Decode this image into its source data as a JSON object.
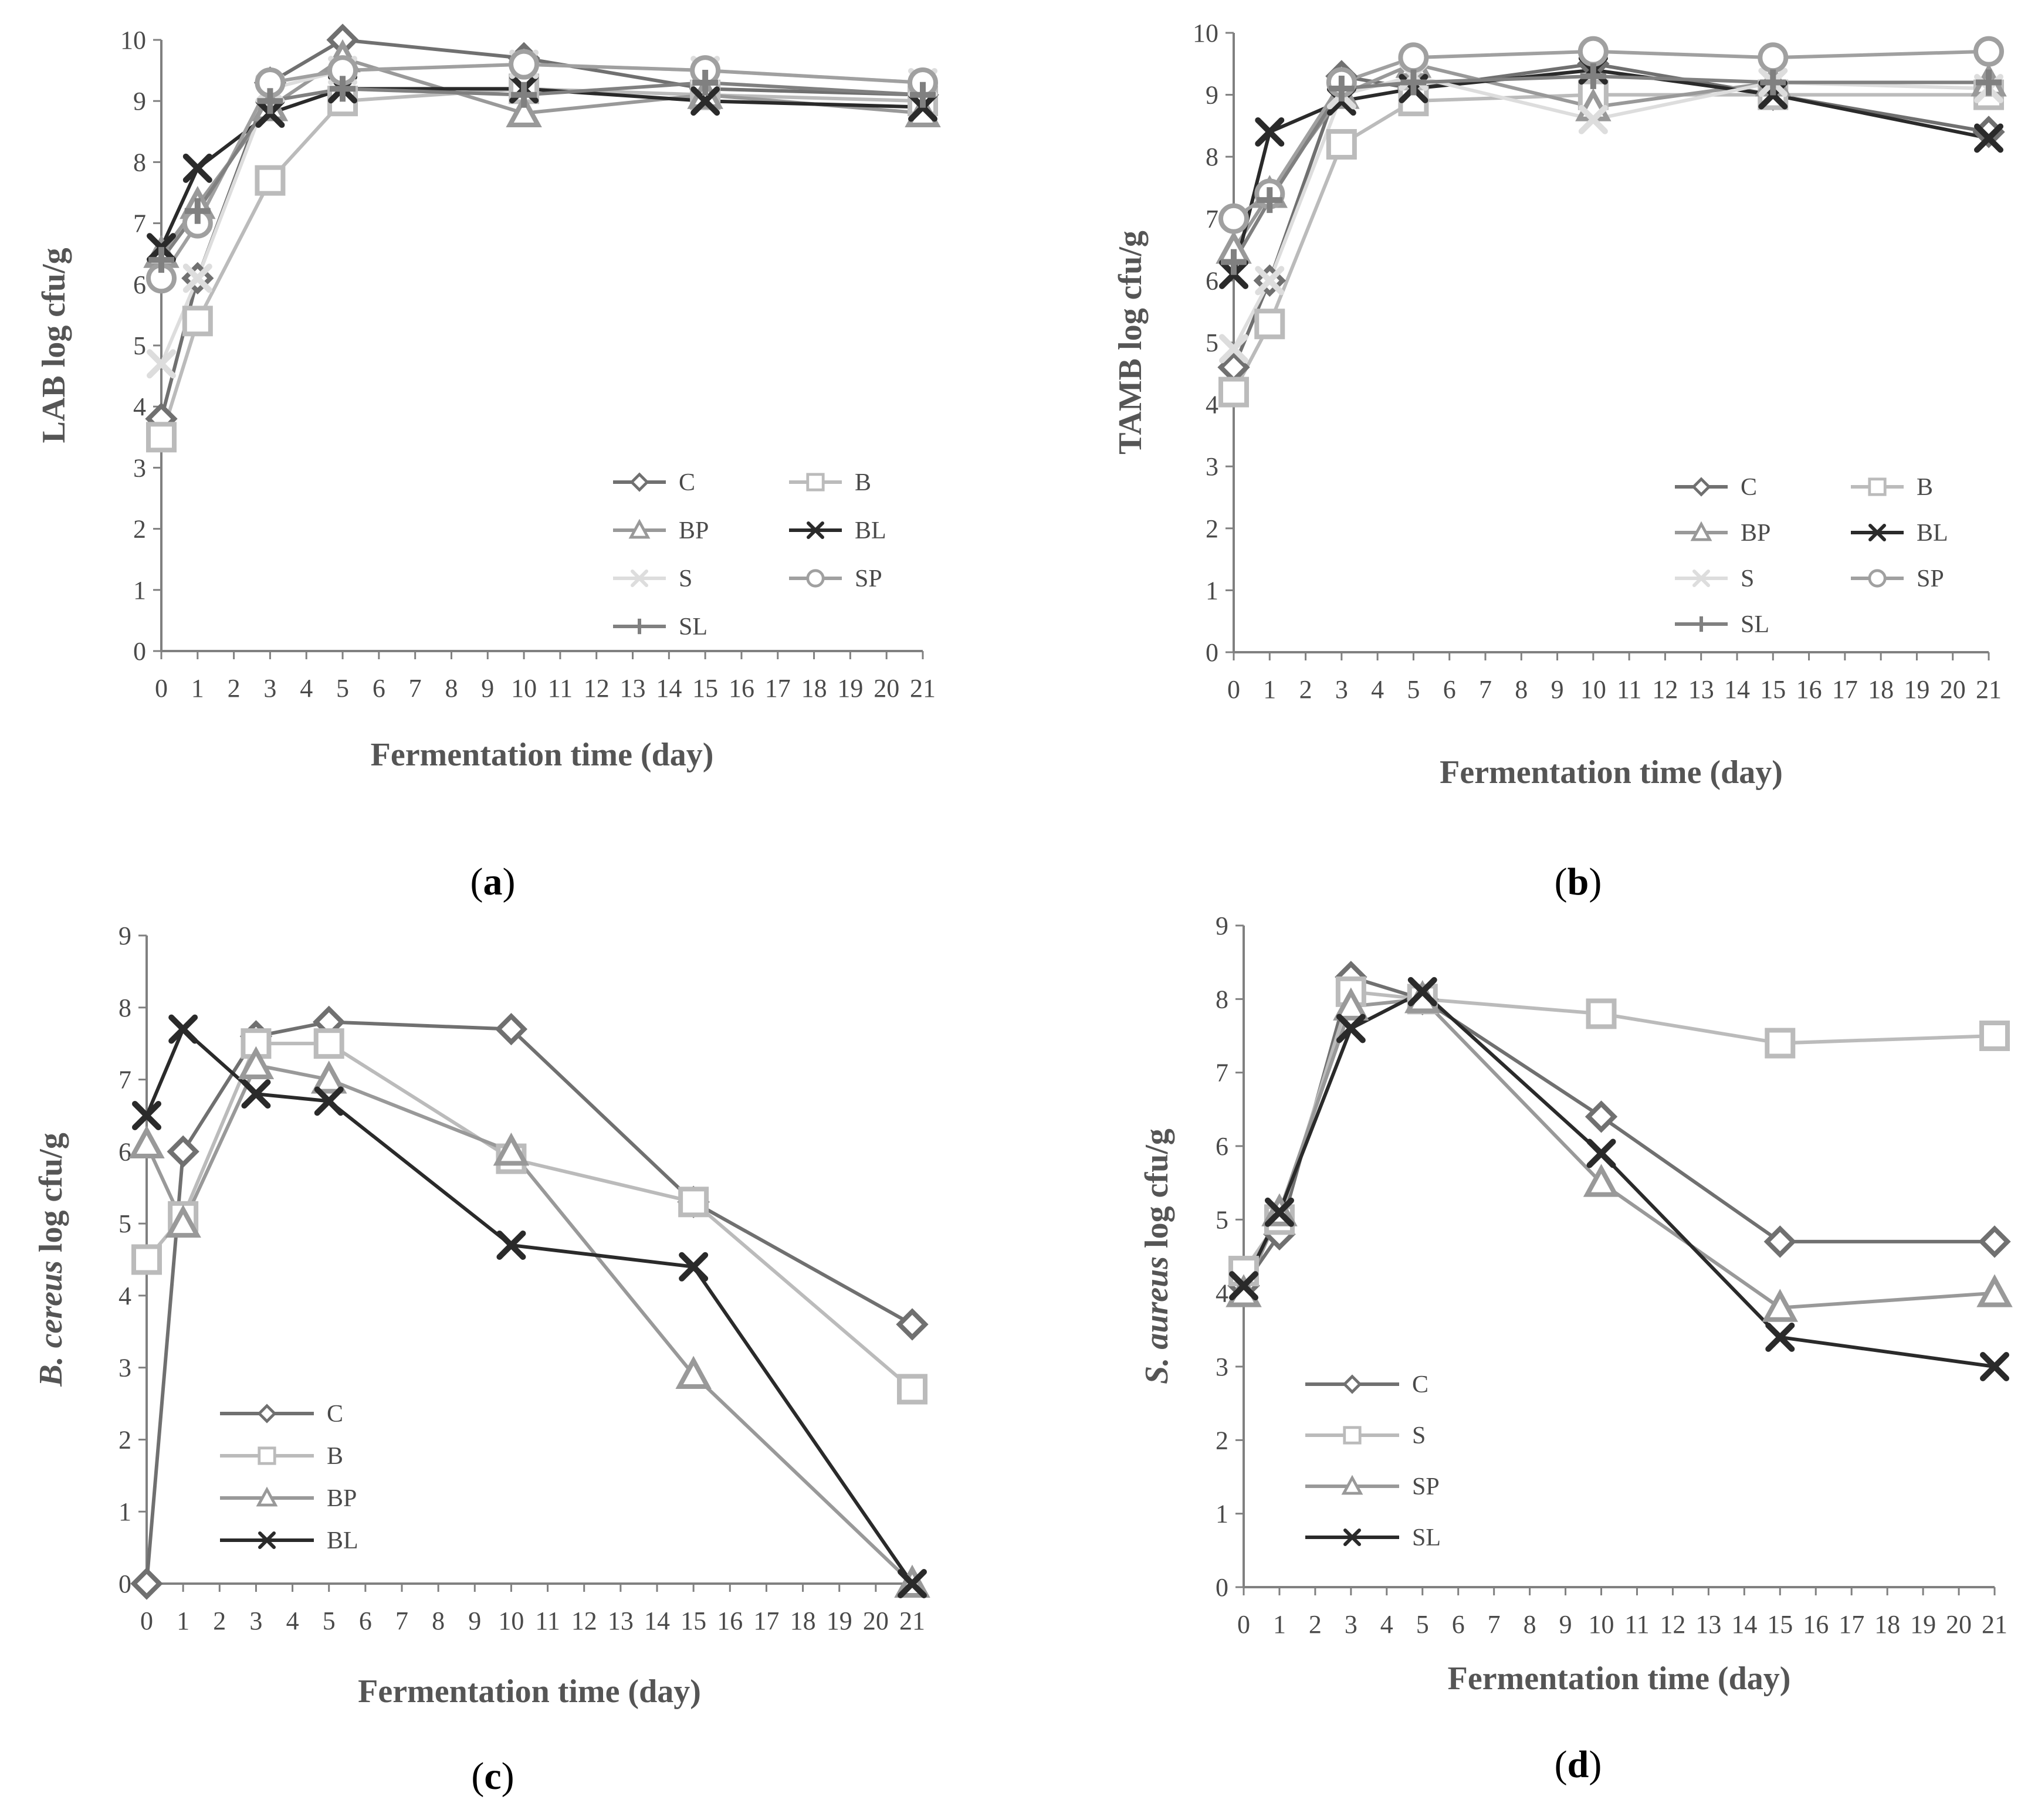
{
  "chart_data": [
    {
      "type": "line",
      "panel_label": "a",
      "title": "",
      "xlabel": "Fermentation time (day)",
      "ylabel": "LAB log cfu/g",
      "xlim": [
        0,
        21
      ],
      "ylim": [
        0,
        10
      ],
      "x_ticks": [
        0,
        1,
        2,
        3,
        4,
        5,
        6,
        7,
        8,
        9,
        10,
        11,
        12,
        13,
        14,
        15,
        16,
        17,
        18,
        19,
        20,
        21
      ],
      "y_ticks": [
        0,
        1,
        2,
        3,
        4,
        5,
        6,
        7,
        8,
        9,
        10
      ],
      "x": [
        0,
        1,
        3,
        5,
        10,
        15,
        21
      ],
      "legend_position": "bottom-right",
      "series": [
        {
          "name": "C",
          "marker": "diamond",
          "color": "#707070",
          "values": [
            3.8,
            6.1,
            9.3,
            10.0,
            9.7,
            9.2,
            9.1
          ]
        },
        {
          "name": "B",
          "marker": "square",
          "color": "#bbbbbb",
          "values": [
            3.5,
            5.4,
            7.7,
            9.0,
            9.2,
            9.1,
            9.0
          ]
        },
        {
          "name": "BP",
          "marker": "triangle",
          "color": "#999999",
          "values": [
            6.5,
            7.3,
            8.9,
            9.7,
            8.8,
            9.1,
            8.8
          ]
        },
        {
          "name": "BL",
          "marker": "x",
          "color": "#2a2a2a",
          "values": [
            6.6,
            7.9,
            8.8,
            9.2,
            9.2,
            9.0,
            8.9
          ]
        },
        {
          "name": "S",
          "marker": "x-light",
          "color": "#dddddd",
          "values": [
            4.7,
            6.1,
            9.2,
            9.5,
            9.6,
            9.5,
            9.3
          ]
        },
        {
          "name": "SP",
          "marker": "circle",
          "color": "#a0a0a0",
          "values": [
            6.1,
            7.0,
            9.3,
            9.5,
            9.6,
            9.5,
            9.3
          ]
        },
        {
          "name": "SL",
          "marker": "plus",
          "color": "#808080",
          "values": [
            6.4,
            7.2,
            9.0,
            9.2,
            9.1,
            9.3,
            9.1
          ]
        }
      ]
    },
    {
      "type": "line",
      "panel_label": "b",
      "title": "",
      "xlabel": "Fermentation time (day)",
      "ylabel": "TAMB log cfu/g",
      "xlim": [
        0,
        21
      ],
      "ylim": [
        0,
        10
      ],
      "x_ticks": [
        0,
        1,
        2,
        3,
        4,
        5,
        6,
        7,
        8,
        9,
        10,
        11,
        12,
        13,
        14,
        15,
        16,
        17,
        18,
        19,
        20,
        21
      ],
      "y_ticks": [
        0,
        1,
        2,
        3,
        4,
        5,
        6,
        7,
        8,
        9,
        10
      ],
      "x": [
        0,
        1,
        3,
        5,
        10,
        15,
        21
      ],
      "legend_position": "bottom-right",
      "series": [
        {
          "name": "C",
          "marker": "diamond",
          "color": "#707070",
          "values": [
            4.6,
            6.0,
            9.3,
            9.1,
            9.5,
            9.0,
            8.4
          ]
        },
        {
          "name": "B",
          "marker": "square",
          "color": "#bbbbbb",
          "values": [
            4.2,
            5.3,
            8.2,
            8.9,
            9.0,
            9.0,
            9.0
          ]
        },
        {
          "name": "BP",
          "marker": "triangle",
          "color": "#999999",
          "values": [
            6.5,
            7.4,
            9.0,
            9.5,
            8.8,
            9.2,
            9.2
          ]
        },
        {
          "name": "BL",
          "marker": "x",
          "color": "#2a2a2a",
          "values": [
            6.1,
            8.4,
            8.9,
            9.1,
            9.4,
            9.0,
            8.3
          ]
        },
        {
          "name": "S",
          "marker": "x-light",
          "color": "#dddddd",
          "values": [
            4.9,
            6.0,
            9.0,
            9.3,
            8.6,
            9.2,
            9.1
          ]
        },
        {
          "name": "SP",
          "marker": "circle",
          "color": "#a0a0a0",
          "values": [
            7.0,
            7.4,
            9.2,
            9.6,
            9.7,
            9.6,
            9.7
          ]
        },
        {
          "name": "SL",
          "marker": "plus",
          "color": "#808080",
          "values": [
            6.3,
            7.3,
            9.1,
            9.2,
            9.3,
            9.2,
            9.2
          ]
        }
      ]
    },
    {
      "type": "line",
      "panel_label": "c",
      "title": "",
      "xlabel": "Fermentation time (day)",
      "ylabel_italic": "B. cereus",
      "ylabel": " log cfu/g",
      "xlim": [
        0,
        21
      ],
      "ylim": [
        0,
        9
      ],
      "x_ticks": [
        0,
        1,
        2,
        3,
        4,
        5,
        6,
        7,
        8,
        9,
        10,
        11,
        12,
        13,
        14,
        15,
        16,
        17,
        18,
        19,
        20,
        21
      ],
      "y_ticks": [
        0,
        1,
        2,
        3,
        4,
        5,
        6,
        7,
        8,
        9
      ],
      "x": [
        0,
        1,
        3,
        5,
        10,
        15,
        21
      ],
      "legend_position": "bottom-left",
      "series": [
        {
          "name": "C",
          "marker": "diamond",
          "color": "#707070",
          "values": [
            0,
            6.0,
            7.6,
            7.8,
            7.7,
            5.3,
            3.6
          ]
        },
        {
          "name": "B",
          "marker": "square",
          "color": "#bbbbbb",
          "values": [
            4.5,
            5.1,
            7.5,
            7.5,
            5.9,
            5.3,
            2.7
          ]
        },
        {
          "name": "BP",
          "marker": "triangle",
          "color": "#999999",
          "values": [
            6.1,
            5.0,
            7.2,
            7.0,
            6.0,
            2.9,
            0
          ]
        },
        {
          "name": "BL",
          "marker": "x",
          "color": "#2a2a2a",
          "values": [
            6.5,
            7.7,
            6.8,
            6.7,
            4.7,
            4.4,
            0
          ]
        }
      ]
    },
    {
      "type": "line",
      "panel_label": "d",
      "title": "",
      "xlabel": "Fermentation time (day)",
      "ylabel_italic": "S. aureus",
      "ylabel": " log cfu/g",
      "xlim": [
        0,
        21
      ],
      "ylim": [
        0,
        9
      ],
      "x_ticks": [
        0,
        1,
        2,
        3,
        4,
        5,
        6,
        7,
        8,
        9,
        10,
        11,
        12,
        13,
        14,
        15,
        16,
        17,
        18,
        19,
        20,
        21
      ],
      "y_ticks": [
        0,
        1,
        2,
        3,
        4,
        5,
        6,
        7,
        8,
        9
      ],
      "x": [
        0,
        1,
        3,
        5,
        10,
        15,
        21
      ],
      "legend_position": "bottom-left",
      "series": [
        {
          "name": "C",
          "marker": "diamond",
          "color": "#707070",
          "values": [
            4.1,
            4.8,
            8.3,
            8.0,
            6.4,
            4.7,
            4.7
          ]
        },
        {
          "name": "S",
          "marker": "square",
          "color": "#bbbbbb",
          "values": [
            4.3,
            5.0,
            8.1,
            8.0,
            7.8,
            7.4,
            7.5
          ]
        },
        {
          "name": "SP",
          "marker": "triangle",
          "color": "#999999",
          "values": [
            4.0,
            5.1,
            7.9,
            8.0,
            5.5,
            3.8,
            4.0
          ]
        },
        {
          "name": "SL",
          "marker": "x",
          "color": "#2a2a2a",
          "values": [
            4.1,
            5.1,
            7.6,
            8.1,
            5.9,
            3.4,
            3.0
          ]
        }
      ]
    }
  ]
}
